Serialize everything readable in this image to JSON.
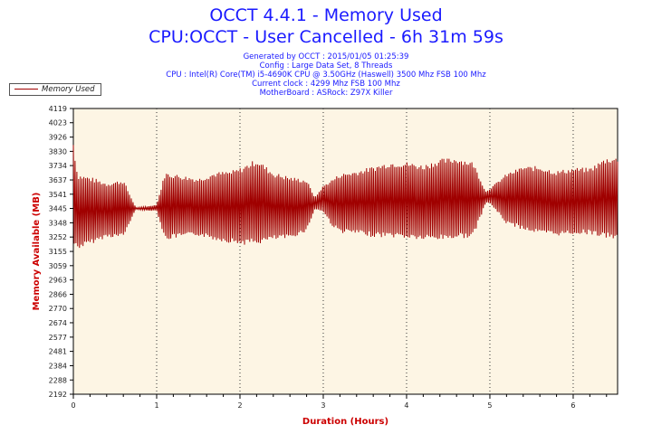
{
  "header": {
    "title": "OCCT 4.4.1 - Memory Used",
    "subtitle": "CPU:OCCT - User Cancelled - 6h 31m 59s",
    "info_lines": [
      "Generated by OCCT : 2015/01/05 01:25:39",
      "Config : Large Data Set, 8 Threads",
      "CPU : Intel(R) Core(TM) i5-4690K CPU @ 3.50GHz (Haswell) 3500 Mhz FSB 100 Mhz",
      "Current clock : 4299 Mhz FSB 100 Mhz",
      "MotherBoard : ASRock: Z97X Killer"
    ]
  },
  "colors": {
    "plot_bg": "#fdf5e4",
    "series": "#a00000",
    "axis_label": "#cc0000",
    "title": "#1a1aff"
  },
  "chart_data": {
    "type": "line",
    "xlabel": "Duration (Hours)",
    "ylabel": "Memory Available (MB)",
    "xlim": [
      0,
      6.533
    ],
    "ylim": [
      2192,
      4119
    ],
    "x_ticks": [
      0,
      1,
      2,
      3,
      4,
      5,
      6
    ],
    "y_ticks": [
      2192,
      2288,
      2384,
      2481,
      2577,
      2674,
      2770,
      2866,
      2963,
      3059,
      3155,
      3252,
      3348,
      3445,
      3541,
      3637,
      3734,
      3830,
      3926,
      4023,
      4119
    ],
    "grid": "vertical dotted at each hour",
    "legend": "top-left, outside plot",
    "series": [
      {
        "name": "Memory Used",
        "envelope": {
          "x": [
            0,
            0.05,
            0.2,
            0.4,
            0.6,
            0.75,
            0.9,
            1.0,
            1.1,
            1.3,
            1.5,
            1.7,
            1.9,
            2.0,
            2.2,
            2.4,
            2.6,
            2.8,
            2.9,
            3.0,
            3.1,
            3.2,
            3.4,
            3.6,
            3.8,
            4.0,
            4.2,
            4.4,
            4.6,
            4.8,
            4.95,
            5.0,
            5.2,
            5.4,
            5.6,
            5.8,
            6.0,
            6.2,
            6.4,
            6.53
          ],
          "max": [
            3900,
            3680,
            3660,
            3620,
            3640,
            3450,
            3460,
            3470,
            3690,
            3670,
            3650,
            3690,
            3700,
            3720,
            3780,
            3690,
            3660,
            3640,
            3520,
            3600,
            3640,
            3680,
            3700,
            3730,
            3760,
            3760,
            3740,
            3780,
            3790,
            3760,
            3560,
            3580,
            3680,
            3730,
            3730,
            3700,
            3720,
            3720,
            3790,
            3790
          ],
          "min": [
            3190,
            3170,
            3200,
            3250,
            3250,
            3440,
            3430,
            3430,
            3230,
            3250,
            3260,
            3230,
            3210,
            3200,
            3200,
            3230,
            3240,
            3290,
            3440,
            3420,
            3330,
            3280,
            3270,
            3250,
            3250,
            3240,
            3230,
            3230,
            3240,
            3250,
            3480,
            3480,
            3340,
            3300,
            3270,
            3260,
            3270,
            3270,
            3240,
            3240
          ]
        }
      }
    ]
  }
}
